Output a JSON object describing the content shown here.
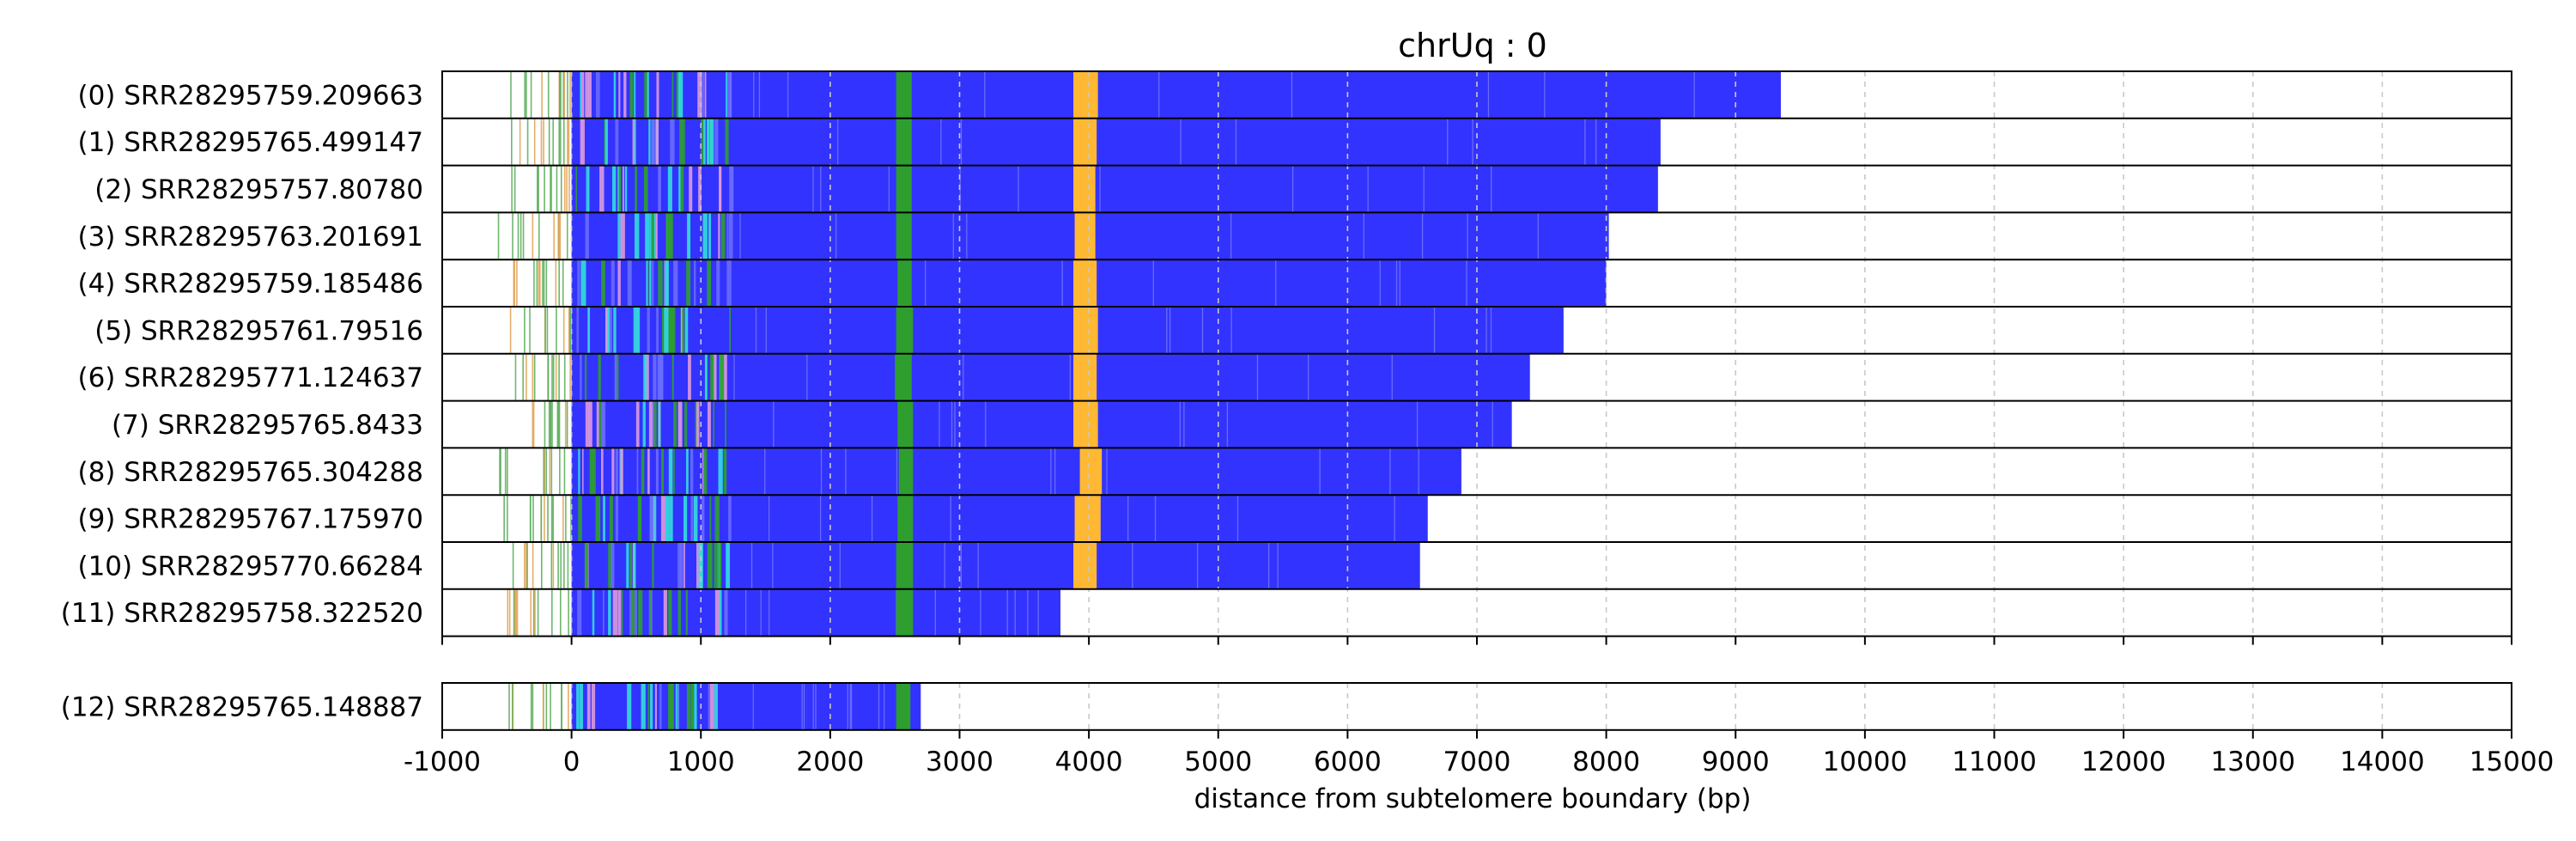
{
  "chart_data": {
    "type": "bar",
    "title": "chrUq : 0",
    "xlabel": "distance from subtelomere boundary (bp)",
    "ylabel": "",
    "xlim": [
      -1000,
      15000
    ],
    "xticks": [
      -1000,
      0,
      1000,
      2000,
      3000,
      4000,
      5000,
      6000,
      7000,
      8000,
      9000,
      10000,
      11000,
      12000,
      13000,
      14000,
      15000
    ],
    "grid": "vertical dashed",
    "legend": "none",
    "colors": {
      "main": "#3333ff",
      "green": "#2e9e2e",
      "orange": "#ffb833",
      "cyan": "#33dddd",
      "pink": "#dd99dd",
      "tick_green": "#55aa55",
      "tick_orange": "#e0a050",
      "grid": "#c8c8c8"
    },
    "panels": [
      {
        "reads": [
          {
            "label": "(0) SRR28295759.209663",
            "start": -510,
            "end": 9350,
            "green": [
              2510,
              2630
            ],
            "orange": [
              3880,
              4070
            ]
          },
          {
            "label": "(1) SRR28295765.499147",
            "start": -500,
            "end": 8420,
            "green": [
              2510,
              2630
            ],
            "orange": [
              3880,
              4060
            ]
          },
          {
            "label": "(2) SRR28295757.80780",
            "start": -500,
            "end": 8400,
            "green": [
              2510,
              2630
            ],
            "orange": [
              3880,
              4050
            ]
          },
          {
            "label": "(3) SRR28295763.201691",
            "start": -600,
            "end": 8020,
            "green": [
              2510,
              2630
            ],
            "orange": [
              3890,
              4050
            ]
          },
          {
            "label": "(4) SRR28295759.185486",
            "start": -500,
            "end": 8000,
            "green": [
              2520,
              2630
            ],
            "orange": [
              3880,
              4060
            ]
          },
          {
            "label": "(5) SRR28295761.79516",
            "start": -500,
            "end": 7670,
            "green": [
              2510,
              2640
            ],
            "orange": [
              3880,
              4070
            ]
          },
          {
            "label": "(6) SRR28295771.124637",
            "start": -500,
            "end": 7410,
            "green": [
              2500,
              2630
            ],
            "orange": [
              3880,
              4060
            ]
          },
          {
            "label": "(7) SRR28295765.8433",
            "start": -500,
            "end": 7270,
            "green": [
              2520,
              2640
            ],
            "orange": [
              3880,
              4070
            ]
          },
          {
            "label": "(8) SRR28295765.304288",
            "start": -570,
            "end": 6880,
            "green": [
              2530,
              2640
            ],
            "orange": [
              3930,
              4100
            ]
          },
          {
            "label": "(9) SRR28295767.175970",
            "start": -560,
            "end": 6620,
            "green": [
              2520,
              2640
            ],
            "orange": [
              3890,
              4090
            ]
          },
          {
            "label": "(10) SRR28295770.66284",
            "start": -510,
            "end": 6560,
            "green": [
              2510,
              2640
            ],
            "orange": [
              3880,
              4060
            ]
          },
          {
            "label": "(11) SRR28295758.322520",
            "start": -520,
            "end": 3780,
            "green": [
              2510,
              2640
            ],
            "orange": null
          }
        ]
      },
      {
        "reads": [
          {
            "label": "(12) SRR28295765.148887",
            "start": -570,
            "end": 2700,
            "green": [
              2510,
              2620
            ],
            "orange": null
          }
        ]
      }
    ]
  }
}
